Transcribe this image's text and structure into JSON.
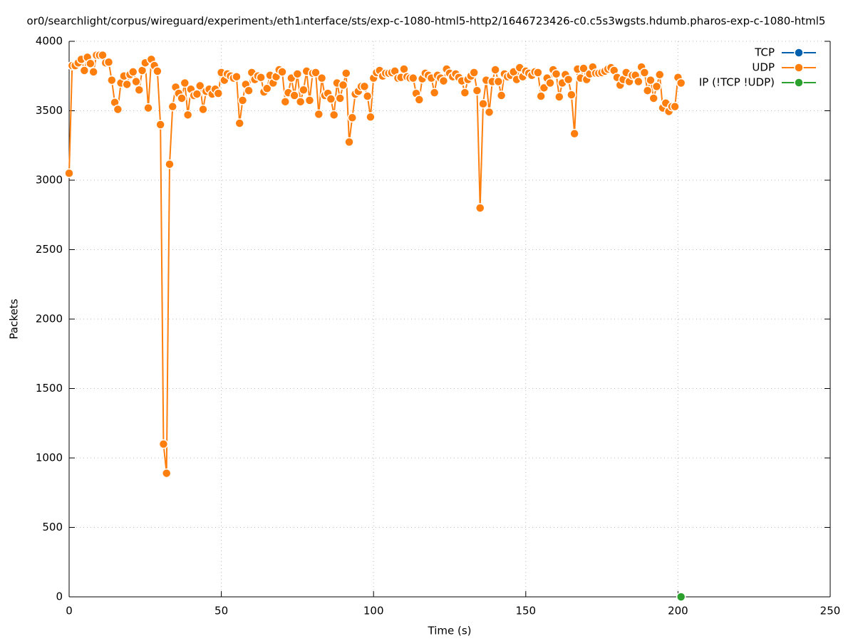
{
  "chart_data": {
    "type": "line",
    "title": "or0/searchlight/corpus/wireguard/experiment₃/eth1ᵢnterface/sts/exp-c-1080-html5-http2/1646723426-c0.c5s3wgsts.hdumb.pharos-exp-c-1080-html5",
    "x_label": "Time (s)",
    "y_label": "Packets",
    "xlim": [
      0,
      250
    ],
    "xticks": [
      0,
      50,
      100,
      150,
      200,
      250
    ],
    "ylim": [
      0,
      4000
    ],
    "yticks": [
      0,
      500,
      1000,
      1500,
      2000,
      2500,
      3000,
      3500,
      4000
    ],
    "grid": true,
    "legend": "top-right",
    "series": [
      {
        "name": "TCP",
        "color": "#0060ad",
        "x": [],
        "values": []
      },
      {
        "name": "UDP",
        "color": "#ff7f0e",
        "x": [
          0,
          1,
          2,
          3,
          4,
          5,
          6,
          7,
          8,
          9,
          10,
          11,
          12,
          13,
          14,
          15,
          16,
          17,
          18,
          19,
          20,
          21,
          22,
          23,
          24,
          25,
          26,
          27,
          28,
          29,
          30,
          31,
          32,
          33,
          34,
          35,
          36,
          37,
          38,
          39,
          40,
          41,
          42,
          43,
          44,
          45,
          46,
          47,
          48,
          49,
          50,
          51,
          52,
          53,
          54,
          55,
          56,
          57,
          58,
          59,
          60,
          61,
          62,
          63,
          64,
          65,
          66,
          67,
          68,
          69,
          70,
          71,
          72,
          73,
          74,
          75,
          76,
          77,
          78,
          79,
          80,
          81,
          82,
          83,
          84,
          85,
          86,
          87,
          88,
          89,
          90,
          91,
          92,
          93,
          94,
          95,
          96,
          97,
          98,
          99,
          100,
          101,
          102,
          103,
          104,
          105,
          106,
          107,
          108,
          109,
          110,
          111,
          112,
          113,
          114,
          115,
          116,
          117,
          118,
          119,
          120,
          121,
          122,
          123,
          124,
          125,
          126,
          127,
          128,
          129,
          130,
          131,
          132,
          133,
          134,
          135,
          136,
          137,
          138,
          139,
          140,
          141,
          142,
          143,
          144,
          145,
          146,
          147,
          148,
          149,
          150,
          151,
          152,
          153,
          154,
          155,
          156,
          157,
          158,
          159,
          160,
          161,
          162,
          163,
          164,
          165,
          166,
          167,
          168,
          169,
          170,
          171,
          172,
          173,
          174,
          175,
          176,
          177,
          178,
          179,
          180,
          181,
          182,
          183,
          184,
          185,
          186,
          187,
          188,
          189,
          190,
          191,
          192,
          193,
          194,
          195,
          196,
          197,
          198,
          199,
          200,
          201
        ],
        "values": [
          3050,
          3825,
          3825,
          3845,
          3870,
          3790,
          3885,
          3840,
          3780,
          3900,
          3900,
          3900,
          3845,
          3850,
          3720,
          3560,
          3510,
          3700,
          3750,
          3690,
          3760,
          3780,
          3710,
          3650,
          3790,
          3845,
          3520,
          3870,
          3825,
          3785,
          3400,
          1100,
          890,
          3115,
          3530,
          3670,
          3625,
          3590,
          3700,
          3470,
          3655,
          3610,
          3620,
          3680,
          3510,
          3640,
          3655,
          3620,
          3655,
          3625,
          3775,
          3720,
          3765,
          3750,
          3735,
          3745,
          3410,
          3575,
          3690,
          3645,
          3775,
          3725,
          3750,
          3740,
          3635,
          3660,
          3755,
          3700,
          3745,
          3795,
          3780,
          3565,
          3630,
          3735,
          3610,
          3765,
          3565,
          3650,
          3785,
          3575,
          3770,
          3775,
          3475,
          3735,
          3610,
          3625,
          3585,
          3470,
          3700,
          3590,
          3685,
          3770,
          3275,
          3450,
          3620,
          3640,
          3675,
          3675,
          3605,
          3455,
          3735,
          3775,
          3790,
          3750,
          3770,
          3770,
          3775,
          3785,
          3735,
          3740,
          3800,
          3745,
          3735,
          3735,
          3625,
          3580,
          3730,
          3770,
          3755,
          3735,
          3630,
          3755,
          3735,
          3715,
          3800,
          3770,
          3745,
          3765,
          3740,
          3715,
          3630,
          3725,
          3750,
          3775,
          3645,
          2800,
          3550,
          3720,
          3490,
          3710,
          3795,
          3710,
          3610,
          3765,
          3745,
          3755,
          3780,
          3725,
          3810,
          3745,
          3785,
          3770,
          3755,
          3780,
          3775,
          3605,
          3665,
          3735,
          3700,
          3795,
          3765,
          3600,
          3700,
          3760,
          3725,
          3615,
          3335,
          3800,
          3735,
          3805,
          3725,
          3765,
          3815,
          3770,
          3770,
          3775,
          3785,
          3800,
          3810,
          3790,
          3740,
          3685,
          3725,
          3775,
          3710,
          3755,
          3755,
          3710,
          3815,
          3775,
          3645,
          3720,
          3590,
          3675,
          3760,
          3520,
          3555,
          3495,
          3530,
          3530,
          3740,
          3700
        ]
      },
      {
        "name": "IP (!TCP  !UDP)",
        "color": "#2ca02c",
        "x": [
          201
        ],
        "values": [
          0
        ]
      }
    ]
  }
}
